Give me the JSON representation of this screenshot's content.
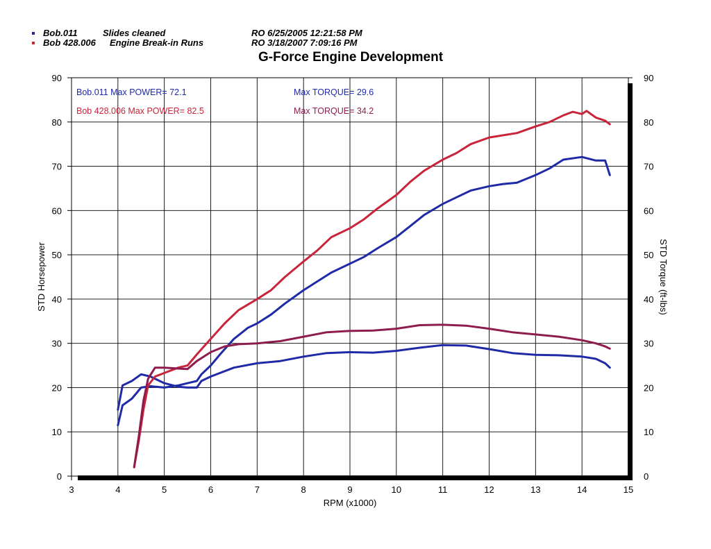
{
  "colors": {
    "run1": "#1f2aa6",
    "run2": "#c8243a",
    "torque2": "#8e1c4e",
    "grid": "#000000"
  },
  "header": {
    "runs": [
      {
        "name": "Bob.011",
        "desc": "Slides cleaned",
        "stamp": "RO 6/25/2005 12:21:58 PM"
      },
      {
        "name": "Bob 428.006",
        "desc": "Engine Break-in Runs",
        "stamp": "RO 3/18/2007 7:09:16 PM"
      }
    ]
  },
  "annotations": {
    "run1_power": "Bob.011  Max POWER= 72.1",
    "run1_torque": "Max TORQUE= 29.6",
    "run2_power": "Bob 428.006  Max POWER= 82.5",
    "run2_torque": "Max TORQUE= 34.2"
  },
  "chart_data": {
    "type": "line",
    "title": "G-Force Engine Development",
    "xlabel": "RPM (x1000)",
    "ylabel": "STD Horsepower",
    "y2label": "STD Torque (ft-lbs)",
    "xlim": [
      3,
      15
    ],
    "ylim": [
      0,
      90
    ],
    "y2lim": [
      0,
      90
    ],
    "x_ticks": [
      3,
      4,
      5,
      6,
      7,
      8,
      9,
      10,
      11,
      12,
      13,
      14,
      15
    ],
    "y_ticks": [
      0,
      10,
      20,
      30,
      40,
      50,
      60,
      70,
      80,
      90
    ],
    "grid": true,
    "series": [
      {
        "name": "Bob.011 STD Horsepower",
        "color": "#1f2aa6",
        "points": [
          [
            4.0,
            11.5
          ],
          [
            4.1,
            16
          ],
          [
            4.3,
            17.5
          ],
          [
            4.5,
            20
          ],
          [
            4.7,
            20.3
          ],
          [
            5.0,
            20
          ],
          [
            5.3,
            20.5
          ],
          [
            5.5,
            21
          ],
          [
            5.7,
            21.5
          ],
          [
            5.8,
            23
          ],
          [
            6.0,
            25
          ],
          [
            6.2,
            27.5
          ],
          [
            6.5,
            31
          ],
          [
            6.8,
            33.5
          ],
          [
            7.0,
            34.5
          ],
          [
            7.3,
            36.5
          ],
          [
            7.6,
            39
          ],
          [
            8.0,
            42
          ],
          [
            8.3,
            44
          ],
          [
            8.6,
            46
          ],
          [
            9.0,
            48
          ],
          [
            9.3,
            49.5
          ],
          [
            9.6,
            51.5
          ],
          [
            10.0,
            54
          ],
          [
            10.3,
            56.5
          ],
          [
            10.6,
            59
          ],
          [
            11.0,
            61.5
          ],
          [
            11.3,
            63
          ],
          [
            11.6,
            64.5
          ],
          [
            12.0,
            65.5
          ],
          [
            12.3,
            66
          ],
          [
            12.6,
            66.3
          ],
          [
            13.0,
            68
          ],
          [
            13.3,
            69.5
          ],
          [
            13.6,
            71.5
          ],
          [
            14.0,
            72.1
          ],
          [
            14.3,
            71.3
          ],
          [
            14.5,
            71.3
          ],
          [
            14.6,
            68
          ]
        ]
      },
      {
        "name": "Bob.011 STD Torque",
        "color": "#1f2aa6",
        "points": [
          [
            4.0,
            15
          ],
          [
            4.1,
            20.5
          ],
          [
            4.3,
            21.5
          ],
          [
            4.5,
            23
          ],
          [
            4.7,
            22.5
          ],
          [
            5.0,
            21
          ],
          [
            5.3,
            20.2
          ],
          [
            5.5,
            20
          ],
          [
            5.7,
            20
          ],
          [
            5.8,
            21.5
          ],
          [
            6.0,
            22.5
          ],
          [
            6.5,
            24.5
          ],
          [
            7.0,
            25.5
          ],
          [
            7.5,
            26
          ],
          [
            8.0,
            27
          ],
          [
            8.5,
            27.8
          ],
          [
            9.0,
            28
          ],
          [
            9.5,
            27.9
          ],
          [
            10.0,
            28.3
          ],
          [
            10.5,
            29
          ],
          [
            11.0,
            29.6
          ],
          [
            11.5,
            29.5
          ],
          [
            12.0,
            28.7
          ],
          [
            12.5,
            27.8
          ],
          [
            13.0,
            27.4
          ],
          [
            13.5,
            27.3
          ],
          [
            14.0,
            27
          ],
          [
            14.3,
            26.5
          ],
          [
            14.5,
            25.5
          ],
          [
            14.6,
            24.5
          ]
        ]
      },
      {
        "name": "Bob 428.006 STD Horsepower",
        "color": "#c8243a",
        "points": [
          [
            4.35,
            2
          ],
          [
            4.45,
            8
          ],
          [
            4.55,
            15
          ],
          [
            4.65,
            20.5
          ],
          [
            4.8,
            22.5
          ],
          [
            5.0,
            23.3
          ],
          [
            5.3,
            24.5
          ],
          [
            5.5,
            25
          ],
          [
            5.7,
            27.5
          ],
          [
            6.0,
            31
          ],
          [
            6.3,
            34.5
          ],
          [
            6.6,
            37.5
          ],
          [
            7.0,
            40
          ],
          [
            7.3,
            42
          ],
          [
            7.6,
            45
          ],
          [
            8.0,
            48.5
          ],
          [
            8.3,
            51
          ],
          [
            8.6,
            54
          ],
          [
            9.0,
            56
          ],
          [
            9.3,
            58
          ],
          [
            9.6,
            60.5
          ],
          [
            10.0,
            63.5
          ],
          [
            10.3,
            66.5
          ],
          [
            10.6,
            69
          ],
          [
            11.0,
            71.5
          ],
          [
            11.3,
            73
          ],
          [
            11.6,
            75
          ],
          [
            12.0,
            76.5
          ],
          [
            12.3,
            77
          ],
          [
            12.6,
            77.5
          ],
          [
            13.0,
            79
          ],
          [
            13.3,
            80
          ],
          [
            13.6,
            81.5
          ],
          [
            13.8,
            82.3
          ],
          [
            14.0,
            81.8
          ],
          [
            14.1,
            82.5
          ],
          [
            14.3,
            81
          ],
          [
            14.5,
            80.3
          ],
          [
            14.6,
            79.5
          ]
        ]
      },
      {
        "name": "Bob 428.006 STD Torque",
        "color": "#8e1c4e",
        "points": [
          [
            4.35,
            2
          ],
          [
            4.45,
            9
          ],
          [
            4.55,
            17
          ],
          [
            4.65,
            22
          ],
          [
            4.8,
            24.5
          ],
          [
            5.0,
            24.5
          ],
          [
            5.3,
            24.3
          ],
          [
            5.5,
            24.2
          ],
          [
            5.7,
            26
          ],
          [
            6.0,
            28
          ],
          [
            6.3,
            29.3
          ],
          [
            6.6,
            29.8
          ],
          [
            7.0,
            30
          ],
          [
            7.5,
            30.5
          ],
          [
            8.0,
            31.5
          ],
          [
            8.5,
            32.5
          ],
          [
            9.0,
            32.8
          ],
          [
            9.5,
            32.9
          ],
          [
            10.0,
            33.3
          ],
          [
            10.5,
            34.1
          ],
          [
            11.0,
            34.2
          ],
          [
            11.5,
            34
          ],
          [
            12.0,
            33.3
          ],
          [
            12.5,
            32.5
          ],
          [
            13.0,
            32
          ],
          [
            13.5,
            31.5
          ],
          [
            14.0,
            30.7
          ],
          [
            14.3,
            30
          ],
          [
            14.5,
            29.3
          ],
          [
            14.6,
            28.8
          ]
        ]
      }
    ]
  }
}
